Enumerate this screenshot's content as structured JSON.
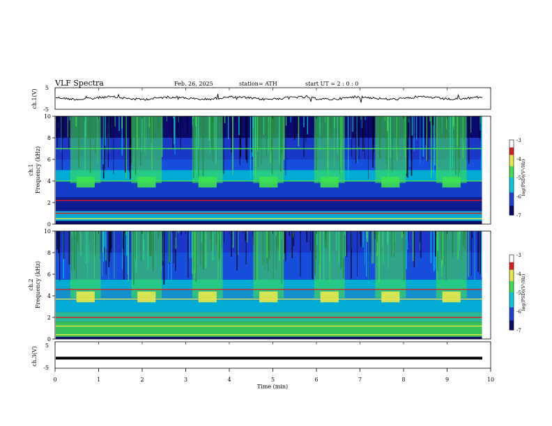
{
  "header": {
    "title": "VLF  Spectra",
    "date": "Feb. 26, 2025",
    "station": "station= ATH",
    "start": "start  UT  =    2  : 0   : 0"
  },
  "chart_data": [
    {
      "type": "line",
      "panel": "ch1-waveform",
      "ylabel": "ch.1(V)",
      "yticks": [
        "5",
        "-5"
      ],
      "ylim": [
        -5,
        5
      ],
      "xlim": [
        0,
        10
      ],
      "series": [
        {
          "values_desc": [
            0,
            0.2,
            -0.1,
            0.3,
            -0.2,
            0.1,
            0,
            0.2,
            -0.3,
            0.1
          ]
        }
      ]
    },
    {
      "type": "heatmap",
      "panel": "ch1-spectrogram",
      "ylabel": "ch.1\nFrequency  (kHz)",
      "ylabel_line1": "ch.1",
      "ylabel_line2": "Frequency  (kHz)",
      "yticks": [
        "0",
        "2",
        "4",
        "6",
        "8",
        "10"
      ],
      "ylim": [
        0,
        10
      ],
      "xlim": [
        0,
        9.8
      ],
      "colorbar": {
        "label": "log(PSD)(V²/Hz)",
        "ticks": [
          "-3",
          "-4",
          "-5",
          "-6",
          "-7"
        ],
        "range": [
          -7,
          -3
        ]
      },
      "periodic_bursts_min": [
        0.7,
        2.1,
        3.5,
        4.9,
        6.3,
        7.7,
        9.1
      ]
    },
    {
      "type": "heatmap",
      "panel": "ch2-spectrogram",
      "ylabel_line1": "ch.2",
      "ylabel_line2": "Frequency  (kHz)",
      "yticks": [
        "0",
        "2",
        "4",
        "6",
        "8",
        "10"
      ],
      "ylim": [
        0,
        10
      ],
      "xlim": [
        0,
        9.8
      ],
      "colorbar": {
        "label": "log(PSD)(V²/Hz)",
        "ticks": [
          "-3",
          "-4",
          "-5",
          "-6",
          "-7"
        ],
        "range": [
          -7,
          -3
        ]
      },
      "periodic_bursts_min": [
        0.7,
        2.1,
        3.5,
        4.9,
        6.3,
        7.7,
        9.1
      ]
    },
    {
      "type": "line",
      "panel": "ch3-waveform",
      "ylabel": "ch.3(V)",
      "yticks": [
        "5",
        "-5"
      ],
      "ylim": [
        -5,
        5
      ],
      "xlim": [
        0,
        10
      ],
      "series": [
        {
          "level": -1.2
        }
      ]
    }
  ],
  "xaxis": {
    "label": "Time  (min)",
    "ticks": [
      "0",
      "1",
      "2",
      "3",
      "4",
      "5",
      "6",
      "7",
      "8",
      "9",
      "10"
    ],
    "range": [
      0,
      10
    ]
  },
  "colors": {
    "dark_blue": "#0a0a6e",
    "blue": "#1f3fd8",
    "cyan": "#00c8e6",
    "green": "#3ee052",
    "yellow": "#e8e84a",
    "red": "#d81e1e"
  }
}
